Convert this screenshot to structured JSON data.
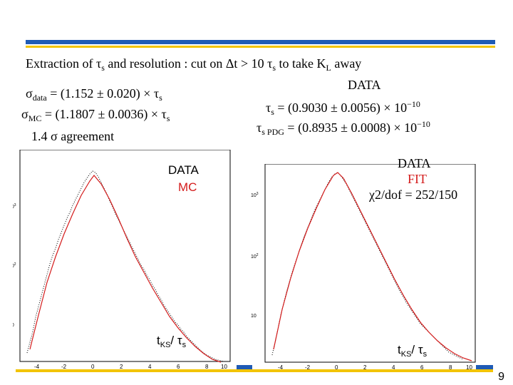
{
  "title": {
    "prefix": "Extraction of ",
    "tau": "τ",
    "sub_s": "s",
    "middle": " and resolution : cut on ",
    "delta": "Δt",
    "gt": " > 10 ",
    "tau2": "τ",
    "sub_s2": "s",
    "tail": " to take K",
    "sub_L": "L",
    "tail2": " away"
  },
  "left_text": {
    "line1_sigma": "σ",
    "line1_sub": "data",
    "line1_val": " = (1.152 ± 0.020) × τ",
    "line1_sub2": "s",
    "line2_sigma": "σ",
    "line2_sub": "MC",
    "line2_val": " = (1.1807 ± 0.0036) × τ",
    "line2_sub2": "s",
    "line3": "1.4 σ agreement"
  },
  "right_text": {
    "header": "DATA",
    "tau1": "τ",
    "sub1": "s",
    "eq1": " = (0.9030 ± 0.0056) × 10",
    "exp1": "−10",
    "tau2": "τ",
    "sub2": "s PDG",
    "eq2": " = (0.8935 ± 0.0008) × 10",
    "exp2": "−10"
  },
  "plot_left": {
    "legend_data": "DATA",
    "legend_mc": "MC",
    "xlabel_t": "t",
    "xlabel_sub": "KS",
    "xlabel_rest": "/ τ",
    "xlabel_sub2": "s",
    "y_ticks": [
      "10",
      "10",
      "10"
    ],
    "y_exps": [
      "3",
      "2",
      ""
    ],
    "x_ticks": [
      "-4",
      "-2",
      "0",
      "2",
      "4",
      "6",
      "8",
      "10"
    ]
  },
  "plot_right": {
    "legend_data": "DATA",
    "legend_fit": "FIT",
    "legend_chi": "χ2/dof = 252/150",
    "xlabel_t": "t",
    "xlabel_sub": "KS",
    "xlabel_rest": "/ τ",
    "xlabel_sub2": "s",
    "y_ticks": [
      "10",
      "10",
      "10"
    ],
    "y_exps": [
      "3",
      "2",
      ""
    ],
    "x_ticks": [
      "-4",
      "-2",
      "0",
      "2",
      "4",
      "6",
      "8",
      "10"
    ]
  },
  "page_number": "9",
  "colors": {
    "accent_blue": "#1f5bb5",
    "accent_yellow": "#f2c400",
    "fit_red": "#d41c1c"
  }
}
